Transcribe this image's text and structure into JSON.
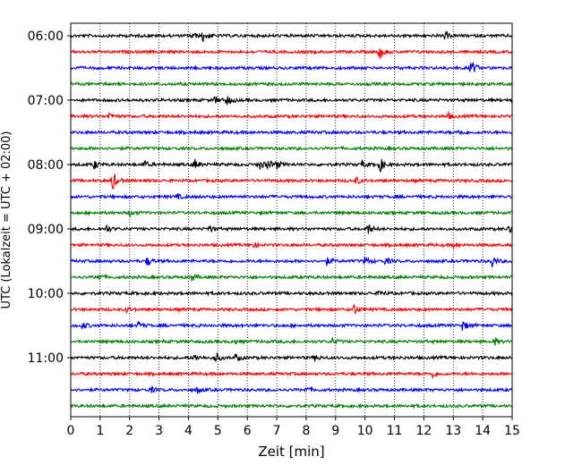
{
  "chart_data": {
    "type": "line",
    "title": "",
    "xlabel": "Zeit  [min]",
    "ylabel": "UTC (Lokalzeit = UTC + 02:00)",
    "xlim": [
      0,
      15
    ],
    "x_ticks": [
      "0",
      "1",
      "2",
      "3",
      "4",
      "5",
      "6",
      "7",
      "8",
      "9",
      "10",
      "11",
      "12",
      "13",
      "14",
      "15"
    ],
    "y_tick_labels": [
      "06:00",
      "07:00",
      "08:00",
      "09:00",
      "10:00",
      "11:00"
    ],
    "vertical_grid": "dotted",
    "color_cycle": [
      "#000000",
      "#ff0000",
      "#0000ff",
      "#008000"
    ],
    "traces": [
      {
        "start": "06:00",
        "color": "#000000",
        "events": [
          {
            "t": 4.1,
            "a": 4
          },
          {
            "t": 4.5,
            "a": 7
          },
          {
            "t": 12.7,
            "a": 4
          }
        ]
      },
      {
        "start": "06:15",
        "color": "#ff0000",
        "events": [
          {
            "t": 10.5,
            "a": 8
          }
        ]
      },
      {
        "start": "06:30",
        "color": "#0000ff",
        "events": [
          {
            "t": 13.6,
            "a": 9
          }
        ]
      },
      {
        "start": "06:45",
        "color": "#008000",
        "events": []
      },
      {
        "start": "07:00",
        "color": "#000000",
        "events": [
          {
            "t": 4.9,
            "a": 4
          },
          {
            "t": 5.3,
            "a": 6
          }
        ]
      },
      {
        "start": "07:15",
        "color": "#ff0000",
        "events": [
          {
            "t": 1.3,
            "a": 4
          },
          {
            "t": 12.8,
            "a": 4
          }
        ]
      },
      {
        "start": "07:30",
        "color": "#0000ff",
        "events": [
          {
            "t": 13.2,
            "a": 3
          }
        ]
      },
      {
        "start": "07:45",
        "color": "#008000",
        "events": []
      },
      {
        "start": "08:00",
        "color": "#000000",
        "events": [
          {
            "t": 0.8,
            "a": 5
          },
          {
            "t": 2.5,
            "a": 4
          },
          {
            "t": 4.2,
            "a": 6
          },
          {
            "t": 6.4,
            "a": 6
          },
          {
            "t": 6.7,
            "a": 5
          },
          {
            "t": 7.0,
            "a": 4
          },
          {
            "t": 9.9,
            "a": 4
          },
          {
            "t": 10.5,
            "a": 8
          }
        ]
      },
      {
        "start": "08:15",
        "color": "#ff0000",
        "events": [
          {
            "t": 1.4,
            "a": 12
          },
          {
            "t": 9.7,
            "a": 4
          }
        ]
      },
      {
        "start": "08:30",
        "color": "#0000ff",
        "events": [
          {
            "t": 3.6,
            "a": 3
          }
        ]
      },
      {
        "start": "08:45",
        "color": "#008000",
        "events": [
          {
            "t": 2.0,
            "a": 3
          }
        ]
      },
      {
        "start": "09:00",
        "color": "#000000",
        "events": [
          {
            "t": 1.2,
            "a": 4
          },
          {
            "t": 4.7,
            "a": 4
          },
          {
            "t": 10.1,
            "a": 6
          },
          {
            "t": 14.9,
            "a": 5
          }
        ]
      },
      {
        "start": "09:15",
        "color": "#ff0000",
        "events": [
          {
            "t": 6.2,
            "a": 3
          },
          {
            "t": 13.0,
            "a": 3
          }
        ]
      },
      {
        "start": "09:30",
        "color": "#0000ff",
        "events": [
          {
            "t": 2.6,
            "a": 5
          },
          {
            "t": 8.7,
            "a": 4
          },
          {
            "t": 10.0,
            "a": 5
          },
          {
            "t": 10.7,
            "a": 4
          },
          {
            "t": 14.3,
            "a": 7
          }
        ]
      },
      {
        "start": "09:45",
        "color": "#008000",
        "events": [
          {
            "t": 0.9,
            "a": 5
          },
          {
            "t": 4.1,
            "a": 4
          }
        ]
      },
      {
        "start": "10:00",
        "color": "#000000",
        "events": [
          {
            "t": 10.5,
            "a": 4
          }
        ]
      },
      {
        "start": "10:15",
        "color": "#ff0000",
        "events": [
          {
            "t": 1.9,
            "a": 3
          },
          {
            "t": 9.6,
            "a": 7
          }
        ]
      },
      {
        "start": "10:30",
        "color": "#0000ff",
        "events": [
          {
            "t": 0.4,
            "a": 4
          },
          {
            "t": 2.3,
            "a": 4
          },
          {
            "t": 13.3,
            "a": 6
          }
        ]
      },
      {
        "start": "10:45",
        "color": "#008000",
        "events": [
          {
            "t": 5.5,
            "a": 3
          },
          {
            "t": 8.9,
            "a": 4
          },
          {
            "t": 14.4,
            "a": 4
          }
        ]
      },
      {
        "start": "11:00",
        "color": "#000000",
        "events": [
          {
            "t": 4.2,
            "a": 4
          },
          {
            "t": 4.9,
            "a": 6
          },
          {
            "t": 5.6,
            "a": 4
          },
          {
            "t": 8.3,
            "a": 3
          }
        ]
      },
      {
        "start": "11:15",
        "color": "#ff0000",
        "events": [
          {
            "t": 12.3,
            "a": 4
          }
        ]
      },
      {
        "start": "11:30",
        "color": "#0000ff",
        "events": [
          {
            "t": 2.7,
            "a": 4
          },
          {
            "t": 4.3,
            "a": 4
          },
          {
            "t": 8.0,
            "a": 3
          }
        ]
      },
      {
        "start": "11:45",
        "color": "#008000",
        "events": []
      }
    ]
  }
}
